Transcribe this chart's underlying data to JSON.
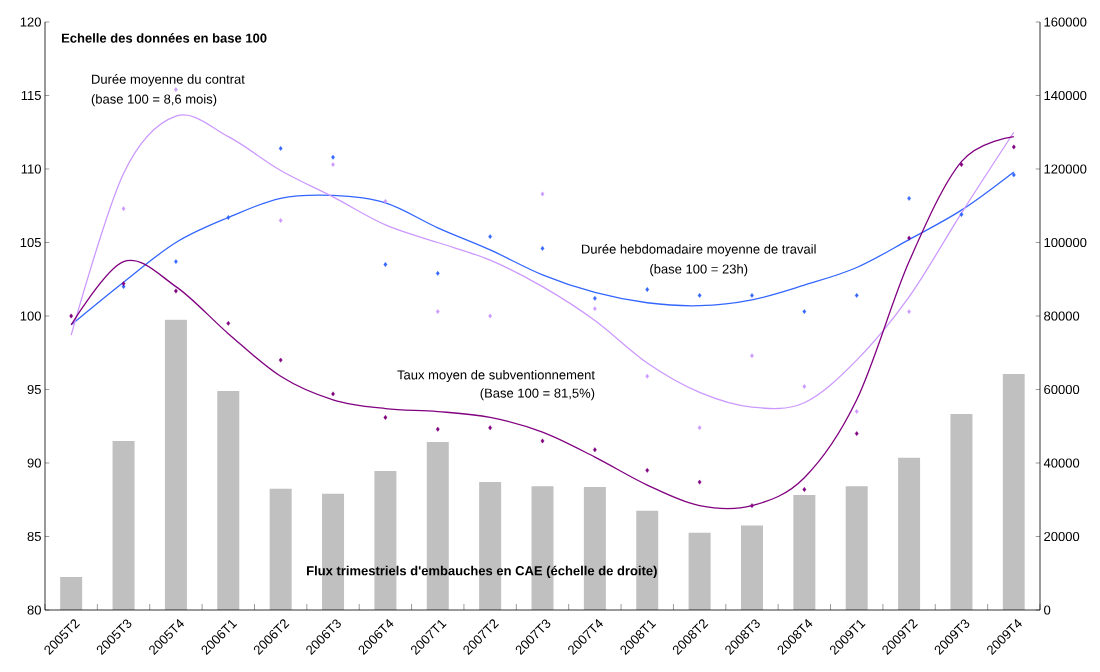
{
  "chart_data": {
    "type": "bar",
    "categories": [
      "2005T2",
      "2005T3",
      "2005T4",
      "2006T1",
      "2006T2",
      "2006T3",
      "2006T4",
      "2007T1",
      "2007T2",
      "2007T3",
      "2007T4",
      "2008T1",
      "2008T2",
      "2008T3",
      "2008T4",
      "2009T1",
      "2009T2",
      "2009T3",
      "2009T4"
    ],
    "series": [
      {
        "name": "Flux trimestriels d'embauches en CAE (échelle de droite)",
        "axis": "y2",
        "color": "#c0c0c0",
        "values": [
          9000,
          46000,
          79000,
          59600,
          33000,
          31600,
          37800,
          45700,
          34800,
          33700,
          33500,
          27000,
          21000,
          23000,
          31300,
          33700,
          41400,
          53300,
          64200
        ]
      },
      {
        "type": "scatter",
        "color": "#3366ff",
        "marker": "diamond",
        "values": [
          null,
          102.0,
          103.7,
          106.7,
          111.4,
          110.8,
          103.5,
          102.9,
          105.4,
          104.6,
          101.2,
          101.8,
          101.4,
          101.4,
          100.3,
          101.4,
          108.0,
          106.9,
          109.6
        ]
      },
      {
        "type": "scatter",
        "color": "#cc99ff",
        "marker": "diamond",
        "values": [
          null,
          107.3,
          115.4,
          null,
          106.5,
          110.3,
          107.8,
          100.3,
          100.0,
          108.3,
          100.5,
          95.9,
          92.4,
          97.3,
          95.2,
          93.5,
          100.3,
          null,
          null
        ]
      },
      {
        "type": "scatter",
        "color": "#800080",
        "marker": "diamond",
        "values": [
          100,
          102.2,
          101.7,
          99.5,
          97.0,
          94.7,
          93.1,
          92.3,
          92.4,
          91.5,
          90.9,
          89.5,
          88.7,
          87.1,
          88.2,
          92.0,
          105.3,
          110.3,
          111.5
        ]
      },
      {
        "type": "line",
        "color": "#3366ff",
        "marker": "none",
        "values": [
          99.4,
          102.3,
          105.0,
          106.7,
          108.0,
          108.2,
          107.7,
          106.0,
          104.5,
          102.8,
          101.6,
          100.9,
          100.7,
          101.1,
          102.1,
          103.3,
          105.2,
          107.2,
          109.8
        ]
      },
      {
        "type": "line",
        "color": "#cc99ff",
        "marker": "none",
        "values": [
          98.7,
          109.7,
          113.6,
          112.2,
          109.9,
          108.1,
          106.2,
          105.0,
          103.8,
          102.0,
          99.7,
          96.8,
          94.8,
          93.8,
          94.1,
          97.0,
          101.3,
          107.0,
          112.5
        ]
      },
      {
        "type": "line",
        "color": "#800080",
        "marker": "none",
        "values": [
          99.4,
          103.7,
          102.0,
          98.8,
          95.9,
          94.3,
          93.7,
          93.5,
          93.1,
          92.1,
          90.4,
          88.5,
          87.1,
          87.1,
          89.0,
          94.3,
          103.7,
          110.5,
          112.2
        ]
      }
    ],
    "ylim": [
      80,
      120
    ],
    "yticks": [
      80,
      85,
      90,
      95,
      100,
      105,
      110,
      115,
      120
    ],
    "y2lim": [
      0,
      160000
    ],
    "y2ticks": [
      0,
      20000,
      40000,
      60000,
      80000,
      100000,
      120000,
      140000,
      160000
    ],
    "annotations": [
      "Echelle des données en base 100",
      "Durée moyenne du contrat",
      "(base 100 = 8,6 mois)",
      "Durée hebdomadaire moyenne de travail",
      "(base 100 = 23h)",
      "Taux moyen de subventionnement",
      "(Base 100 = 81,5%)"
    ]
  }
}
